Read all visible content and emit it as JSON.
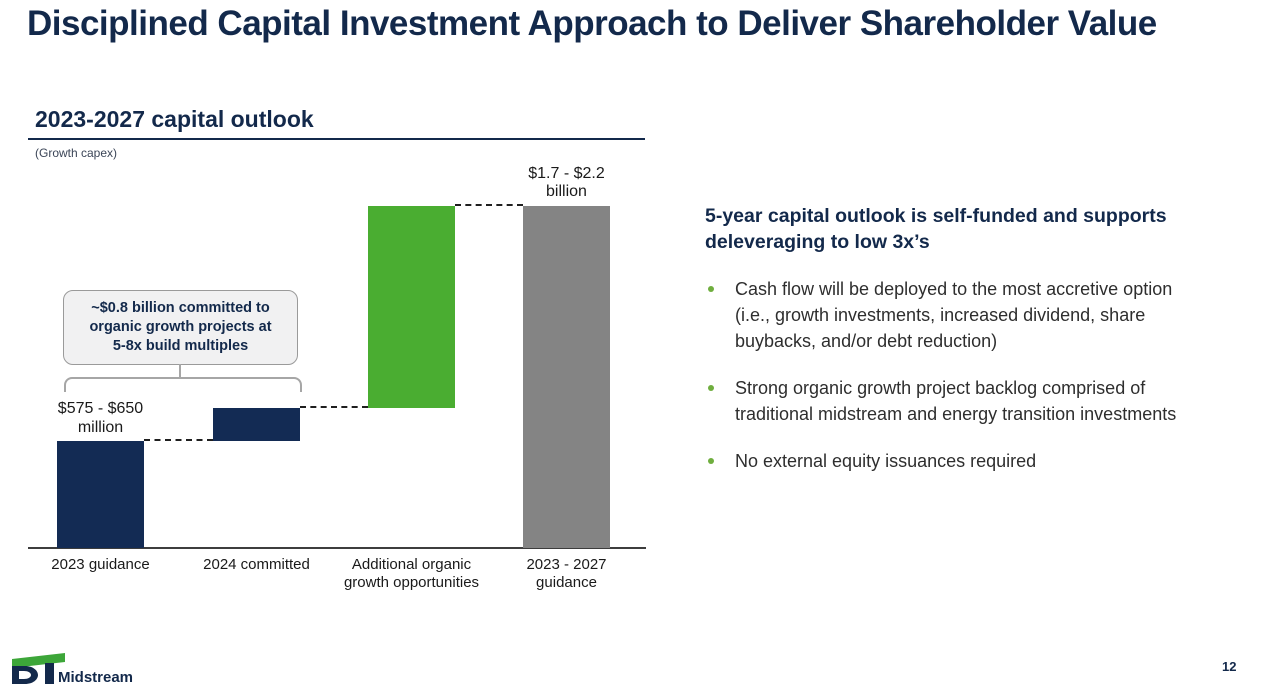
{
  "slide": {
    "title": "Disciplined Capital Investment Approach to Deliver Shareholder Value",
    "page_number": "12",
    "logo": {
      "brand": "DT",
      "name": "Midstream"
    },
    "colors": {
      "navy": "#13294B",
      "green": "#4AAD31",
      "gray": "#848484",
      "body_text": "#2E2E2E"
    }
  },
  "chart_section": {
    "heading": "2023-2027 capital outlook",
    "subheading": "(Growth capex)"
  },
  "chart_data": {
    "type": "bar",
    "subtype": "waterfall",
    "title": "2023-2027 capital outlook",
    "subtitle": "(Growth capex)",
    "unit_note": "values in USD billions, estimated from bar geometry and data labels",
    "categories": [
      "2023 guidance",
      "2024 committed",
      "Additional organic growth opportunities",
      "2023 - 2027 guidance"
    ],
    "category_labels_display": [
      "2023 guidance",
      "2024 committed",
      "Additional organic\ngrowth opportunities",
      "2023 - 2027\nguidance"
    ],
    "segments": [
      {
        "category": "2023 guidance",
        "start": 0,
        "end": 0.61,
        "color_key": "navy",
        "value_label": "$575 - $650\nmillion"
      },
      {
        "category": "2024 committed",
        "start": 0.61,
        "end": 0.8,
        "color_key": "navy"
      },
      {
        "category": "Additional organic growth opportunities",
        "start": 0.8,
        "end": 1.95,
        "color_key": "green"
      },
      {
        "category": "2023 - 2027 guidance",
        "start": 0,
        "end": 1.95,
        "color_key": "gray",
        "value_label": "$1.7 - $2.2\nbillion"
      }
    ],
    "callout": {
      "text": "~$0.8 billion committed to\norganic growth projects at\n5-8x build multiples",
      "applies_to_categories": [
        "2023 guidance",
        "2024 committed"
      ]
    },
    "colors": {
      "navy": "#132B54",
      "green": "#4AAD31",
      "gray": "#848484"
    },
    "ylim": [
      0,
      2.2
    ],
    "gridlines": false,
    "legend": false,
    "connector_style": "dashed"
  },
  "right_panel": {
    "heading": "5-year capital outlook is self-funded and supports deleveraging to low 3x’s",
    "bullet_color": "#6FAE3E",
    "bullets": [
      "Cash flow will be deployed to the most accretive option (i.e., growth investments, increased dividend, share buybacks, and/or debt reduction)",
      "Strong organic growth project backlog comprised of traditional midstream and energy transition investments",
      "No external equity issuances required"
    ]
  }
}
